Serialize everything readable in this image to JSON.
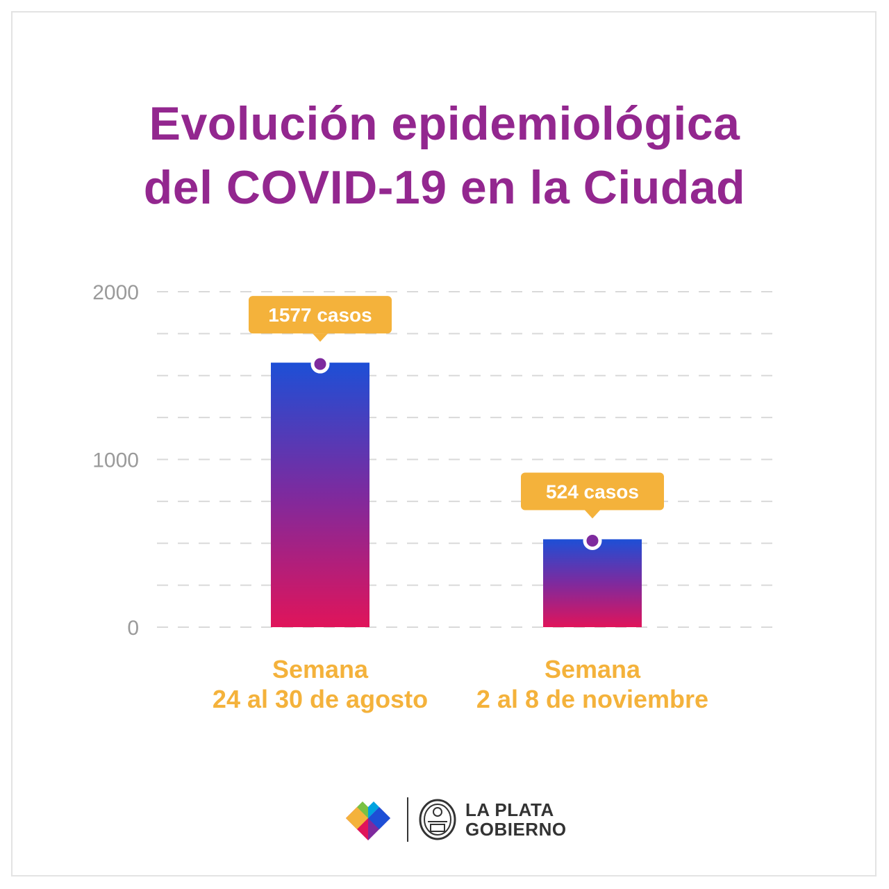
{
  "title": {
    "line1": "Evolución epidemiológica",
    "line2": "del COVID-19 en la Ciudad"
  },
  "colors": {
    "title": "#93278f",
    "accent": "#f4b23b",
    "bar_top": "#1d4fd6",
    "bar_mid": "#7e2a9e",
    "bar_bottom": "#e0145a",
    "axis_text": "#9a9a9a",
    "grid": "#d9d9d9"
  },
  "chart_data": {
    "type": "bar",
    "categories": [
      [
        "Semana",
        "24 al 30 de agosto"
      ],
      [
        "Semana",
        "2 al 8 de noviembre"
      ]
    ],
    "values": [
      1577,
      524
    ],
    "data_labels": [
      "1577 casos",
      "524 casos"
    ],
    "yticks": [
      "2000",
      "1000",
      "0"
    ],
    "ylim": [
      0,
      2000
    ],
    "grid": true
  },
  "footer": {
    "logo_icon": "heart-logo-icon",
    "seal_icon": "city-seal-icon",
    "org_line1": "LA PLATA",
    "org_line2": "GOBIERNO"
  }
}
